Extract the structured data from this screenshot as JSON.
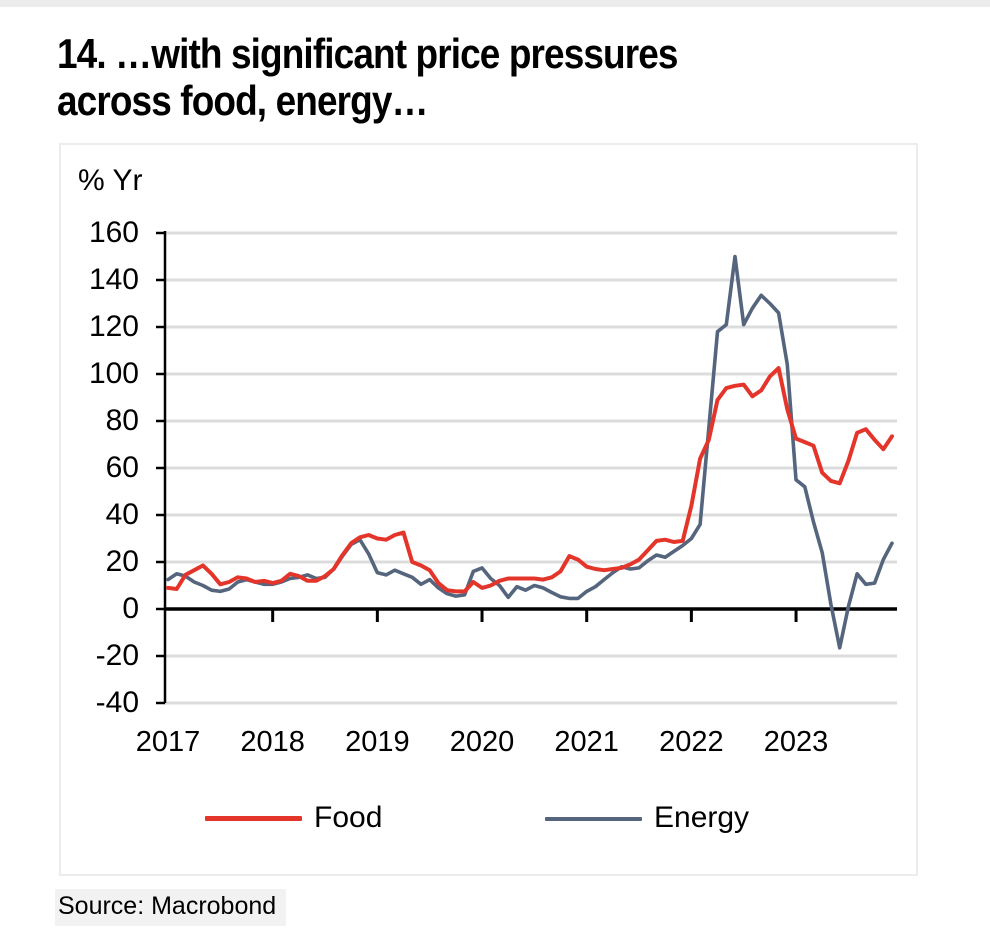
{
  "title": {
    "line1": "14. …with significant price pressures",
    "line2": "across food, energy…"
  },
  "axes": {
    "unit_label": "% Yr",
    "y_ticks": [
      160,
      140,
      120,
      100,
      80,
      60,
      40,
      20,
      0,
      -20,
      -40
    ],
    "x_labels": [
      "2017",
      "2018",
      "2019",
      "2020",
      "2021",
      "2022",
      "2023"
    ]
  },
  "legend": [
    {
      "label": "Food",
      "color": "#e4352b"
    },
    {
      "label": "Energy",
      "color": "#55657d"
    }
  ],
  "source": "Source: Macrobond",
  "colors": {
    "food": "#e4352b",
    "energy": "#55657d",
    "gridline": "#dcdcdc",
    "axis": "#000000",
    "panel_border": "#ececec",
    "source_bg": "#f2f2f2"
  },
  "chart_data": {
    "type": "line",
    "title": "14. …with significant price pressures across food, energy…",
    "ylabel": "% Yr",
    "ylim": [
      -40,
      160
    ],
    "ytick_step": 20,
    "grid": "horizontal",
    "zero_line": true,
    "legend_position": "bottom",
    "frequency": "monthly",
    "x_start": "2017-01",
    "x_end": "2023-12",
    "x_year_labels": [
      "2017",
      "2018",
      "2019",
      "2020",
      "2021",
      "2022",
      "2023"
    ],
    "series": [
      {
        "name": "Food",
        "color": "#e4352b",
        "values": [
          9,
          8.5,
          14.5,
          16.5,
          18.5,
          15,
          10.5,
          11.5,
          13.5,
          13,
          11.5,
          12,
          11,
          12,
          15,
          14,
          12,
          12,
          14,
          17,
          23,
          28,
          30.5,
          31.5,
          30,
          29.5,
          31.5,
          32.5,
          20,
          18.5,
          16.5,
          11,
          8,
          7.5,
          7.5,
          11.5,
          9,
          10,
          12,
          13,
          13,
          13,
          13,
          12.5,
          13.5,
          16,
          22.5,
          21,
          18,
          17,
          16.5,
          17,
          17.5,
          19,
          21,
          25,
          29,
          29.5,
          28.5,
          29,
          44,
          64,
          72,
          89,
          94,
          95,
          95.5,
          90.5,
          93,
          99,
          102.5,
          85,
          72.5,
          71,
          69.5,
          58,
          54.5,
          53.5,
          63,
          75,
          76.5,
          72,
          68,
          73.5
        ]
      },
      {
        "name": "Energy",
        "color": "#55657d",
        "values": [
          12.5,
          15,
          14,
          11.5,
          10,
          8,
          7.5,
          8.5,
          11.5,
          12.5,
          11.5,
          10.5,
          10.5,
          11.5,
          13,
          13.5,
          14.5,
          13,
          13.5,
          17,
          22.5,
          27.5,
          29.5,
          23.5,
          15.5,
          14.5,
          16.5,
          15,
          13.5,
          10.5,
          12.5,
          9,
          6.5,
          5.5,
          6,
          16,
          17.5,
          13,
          10,
          5,
          9.5,
          8,
          10,
          9,
          7,
          5.2,
          4.5,
          4.5,
          7.5,
          9.5,
          12.5,
          15.5,
          18,
          17,
          17.5,
          20.5,
          23,
          22,
          24.5,
          27,
          30,
          36,
          77,
          118,
          121,
          150,
          121,
          128,
          133.5,
          130,
          126,
          104,
          55,
          52,
          37,
          24,
          2,
          -16.5,
          1,
          15,
          10.5,
          11,
          21,
          28
        ]
      }
    ]
  }
}
